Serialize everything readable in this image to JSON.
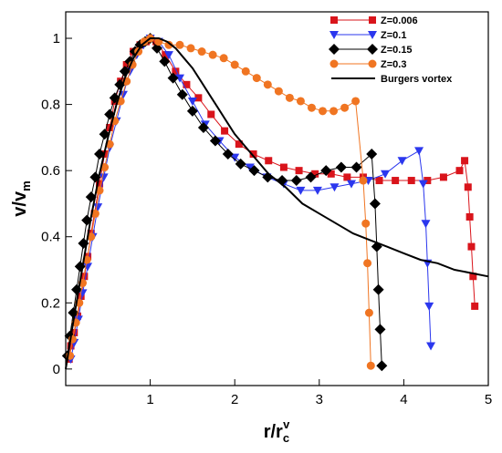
{
  "chart_data": {
    "type": "line",
    "xlabel": {
      "main": "r/r",
      "sub": "c",
      "sup": "v"
    },
    "ylabel": {
      "main": "v/v",
      "sub": "m"
    },
    "xlim": [
      0,
      5
    ],
    "ylim": [
      -0.05,
      1.08
    ],
    "xticks": [
      1,
      2,
      3,
      4,
      5
    ],
    "yticks": [
      0,
      0.2,
      0.4,
      0.6,
      0.8,
      1
    ],
    "xtick_labels": [
      "1",
      "2",
      "3",
      "4",
      "5"
    ],
    "ytick_labels": [
      "0",
      "0.2",
      "0.4",
      "0.6",
      "0.8",
      "1"
    ],
    "grid": false,
    "legend_position": "top-right",
    "series": [
      {
        "name": "Z=0.006",
        "color": "#d9141b",
        "marker": "square",
        "x": [
          0.04,
          0.06,
          0.1,
          0.14,
          0.18,
          0.22,
          0.26,
          0.3,
          0.34,
          0.4,
          0.46,
          0.52,
          0.58,
          0.65,
          0.72,
          0.8,
          0.88,
          0.95,
          1.0,
          1.07,
          1.18,
          1.3,
          1.43,
          1.57,
          1.72,
          1.88,
          2.05,
          2.22,
          2.4,
          2.58,
          2.76,
          2.95,
          3.14,
          3.33,
          3.52,
          3.71,
          3.9,
          4.09,
          4.28,
          4.47,
          4.66,
          4.72,
          4.76,
          4.78,
          4.8,
          4.82,
          4.84
        ],
        "y": [
          0.03,
          0.07,
          0.11,
          0.16,
          0.22,
          0.28,
          0.34,
          0.41,
          0.47,
          0.56,
          0.65,
          0.73,
          0.81,
          0.87,
          0.92,
          0.96,
          0.98,
          0.99,
          1.0,
          0.99,
          0.95,
          0.9,
          0.86,
          0.82,
          0.77,
          0.72,
          0.68,
          0.65,
          0.63,
          0.61,
          0.6,
          0.59,
          0.59,
          0.58,
          0.58,
          0.57,
          0.57,
          0.57,
          0.57,
          0.58,
          0.6,
          0.63,
          0.55,
          0.46,
          0.37,
          0.28,
          0.19
        ]
      },
      {
        "name": "Z=0.1",
        "color": "#2b37ee",
        "marker": "triangle-down",
        "x": [
          0.06,
          0.1,
          0.15,
          0.2,
          0.26,
          0.32,
          0.38,
          0.45,
          0.52,
          0.6,
          0.68,
          0.76,
          0.84,
          0.92,
          1.0,
          1.1,
          1.22,
          1.35,
          1.5,
          1.65,
          1.82,
          2.0,
          2.18,
          2.38,
          2.58,
          2.78,
          2.98,
          3.18,
          3.38,
          3.58,
          3.78,
          3.98,
          4.18,
          4.23,
          4.26,
          4.28,
          4.3,
          4.32
        ],
        "y": [
          0.03,
          0.08,
          0.15,
          0.23,
          0.31,
          0.4,
          0.49,
          0.58,
          0.67,
          0.75,
          0.83,
          0.9,
          0.95,
          0.98,
          1.0,
          0.99,
          0.95,
          0.88,
          0.81,
          0.74,
          0.69,
          0.64,
          0.61,
          0.58,
          0.56,
          0.54,
          0.54,
          0.55,
          0.56,
          0.57,
          0.59,
          0.63,
          0.66,
          0.56,
          0.44,
          0.32,
          0.19,
          0.07
        ]
      },
      {
        "name": "Z=0.15",
        "color": "#000000",
        "marker": "diamond",
        "x": [
          0.02,
          0.05,
          0.09,
          0.13,
          0.17,
          0.21,
          0.25,
          0.3,
          0.35,
          0.4,
          0.46,
          0.52,
          0.58,
          0.64,
          0.7,
          0.76,
          0.82,
          0.88,
          0.94,
          1.0,
          1.08,
          1.17,
          1.27,
          1.38,
          1.5,
          1.63,
          1.77,
          1.92,
          2.07,
          2.23,
          2.39,
          2.56,
          2.73,
          2.9,
          3.08,
          3.26,
          3.44,
          3.62,
          3.66,
          3.68,
          3.7,
          3.72,
          3.74
        ],
        "y": [
          0.04,
          0.1,
          0.17,
          0.24,
          0.31,
          0.38,
          0.45,
          0.52,
          0.58,
          0.65,
          0.71,
          0.77,
          0.82,
          0.86,
          0.9,
          0.93,
          0.96,
          0.98,
          0.99,
          1.0,
          0.97,
          0.93,
          0.88,
          0.83,
          0.78,
          0.73,
          0.69,
          0.65,
          0.62,
          0.6,
          0.58,
          0.57,
          0.57,
          0.58,
          0.6,
          0.61,
          0.61,
          0.65,
          0.5,
          0.37,
          0.24,
          0.12,
          0.01
        ]
      },
      {
        "name": "Z=0.3",
        "color": "#f07522",
        "marker": "circle",
        "x": [
          0.05,
          0.08,
          0.12,
          0.16,
          0.2,
          0.25,
          0.3,
          0.35,
          0.4,
          0.46,
          0.52,
          0.58,
          0.65,
          0.72,
          0.79,
          0.86,
          0.93,
          1.0,
          1.1,
          1.22,
          1.35,
          1.48,
          1.61,
          1.74,
          1.87,
          2.0,
          2.13,
          2.26,
          2.39,
          2.52,
          2.65,
          2.78,
          2.91,
          3.04,
          3.17,
          3.3,
          3.43,
          3.52,
          3.55,
          3.57,
          3.59,
          3.61
        ],
        "y": [
          0.04,
          0.09,
          0.14,
          0.2,
          0.26,
          0.33,
          0.4,
          0.47,
          0.54,
          0.61,
          0.68,
          0.75,
          0.81,
          0.87,
          0.92,
          0.96,
          0.99,
          1.0,
          0.99,
          0.98,
          0.98,
          0.97,
          0.96,
          0.95,
          0.94,
          0.92,
          0.9,
          0.88,
          0.86,
          0.84,
          0.82,
          0.81,
          0.79,
          0.78,
          0.78,
          0.79,
          0.81,
          0.57,
          0.44,
          0.32,
          0.17,
          0.01
        ]
      },
      {
        "name": "Burgers vortex",
        "color": "#000000",
        "marker": "none",
        "x": [
          0.0,
          0.1,
          0.2,
          0.3,
          0.4,
          0.5,
          0.6,
          0.7,
          0.8,
          0.9,
          1.0,
          1.1,
          1.2,
          1.3,
          1.4,
          1.5,
          1.6,
          1.7,
          1.8,
          1.9,
          2.0,
          2.2,
          2.4,
          2.6,
          2.8,
          3.0,
          3.2,
          3.4,
          3.6,
          3.8,
          4.0,
          4.2,
          4.4,
          4.6,
          4.8,
          5.0
        ],
        "y": [
          0.0,
          0.16,
          0.31,
          0.46,
          0.59,
          0.7,
          0.8,
          0.88,
          0.94,
          0.98,
          1.0,
          1.0,
          0.99,
          0.97,
          0.94,
          0.91,
          0.87,
          0.83,
          0.79,
          0.75,
          0.71,
          0.65,
          0.59,
          0.55,
          0.5,
          0.47,
          0.44,
          0.41,
          0.39,
          0.37,
          0.35,
          0.33,
          0.32,
          0.3,
          0.29,
          0.28
        ]
      }
    ]
  }
}
